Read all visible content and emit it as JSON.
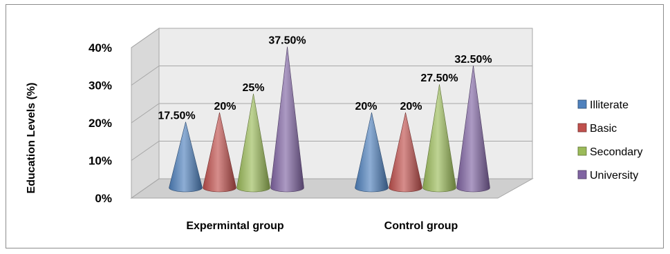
{
  "chart_data": {
    "type": "bar",
    "style": "3d-cone",
    "title": "",
    "ylabel": "Education Levels (%)",
    "xlabel": "",
    "ylim": [
      0,
      40
    ],
    "yticks": [
      "0%",
      "10%",
      "20%",
      "30%",
      "40%"
    ],
    "grid": true,
    "legend_position": "right",
    "categories": [
      "Expermintal group",
      "Control group"
    ],
    "series": [
      {
        "name": "Illiterate",
        "color": "#4f81bd",
        "values": [
          17.5,
          20
        ],
        "labels": [
          "17.50%",
          "20%"
        ]
      },
      {
        "name": "Basic",
        "color": "#c0504d",
        "values": [
          20,
          20
        ],
        "labels": [
          "20%",
          "20%"
        ]
      },
      {
        "name": "Secondary",
        "color": "#9bbb59",
        "values": [
          25,
          27.5
        ],
        "labels": [
          "25%",
          "27.50%"
        ]
      },
      {
        "name": "University",
        "color": "#8064a2",
        "values": [
          37.5,
          32.5
        ],
        "labels": [
          "37.50%",
          "32.50%"
        ]
      }
    ]
  }
}
